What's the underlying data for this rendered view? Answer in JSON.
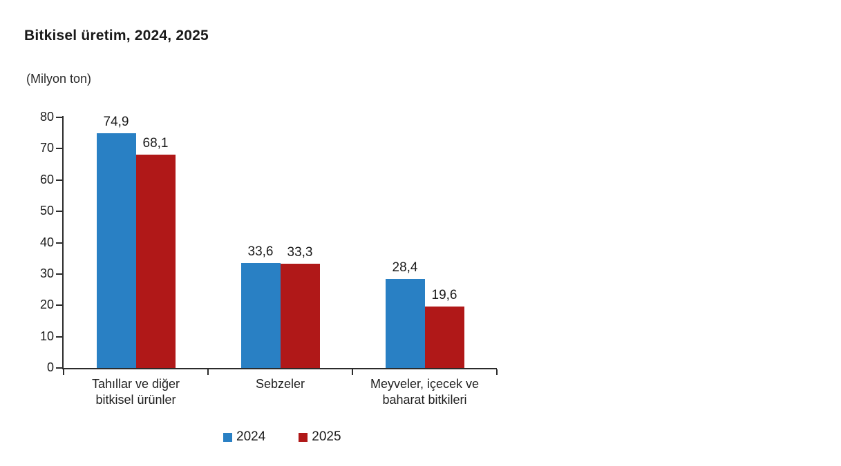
{
  "header": {
    "title": "Bitkisel üretim, 2024, 2025",
    "unit_label": "(Milyon ton)"
  },
  "chart_data": {
    "type": "bar",
    "title": "Bitkisel üretim, 2024, 2025",
    "ylabel": "(Milyon ton)",
    "xlabel": "",
    "categories": [
      "Tahıllar ve diğer\nbitkisel ürünler",
      "Sebzeler",
      "Meyveler, içecek ve\nbaharat bitkileri"
    ],
    "series": [
      {
        "name": "2024",
        "color": "#2980c4",
        "values": [
          74.9,
          33.6,
          28.4
        ]
      },
      {
        "name": "2025",
        "color": "#b01818",
        "values": [
          68.1,
          33.3,
          19.6
        ]
      }
    ],
    "value_labels": [
      [
        "74,9",
        "33,6",
        "28,4"
      ],
      [
        "68,1",
        "33,3",
        "19,6"
      ]
    ],
    "ylim": [
      0,
      80
    ],
    "yticks": [
      0,
      10,
      20,
      30,
      40,
      50,
      60,
      70,
      80
    ],
    "grid": false,
    "legend_position": "bottom",
    "decimal_separator": ","
  },
  "colors": {
    "axis": "#2b2b2b",
    "text": "#1a1a1a",
    "background": "#ffffff",
    "series_2024": "#2980c4",
    "series_2025": "#b01818"
  }
}
